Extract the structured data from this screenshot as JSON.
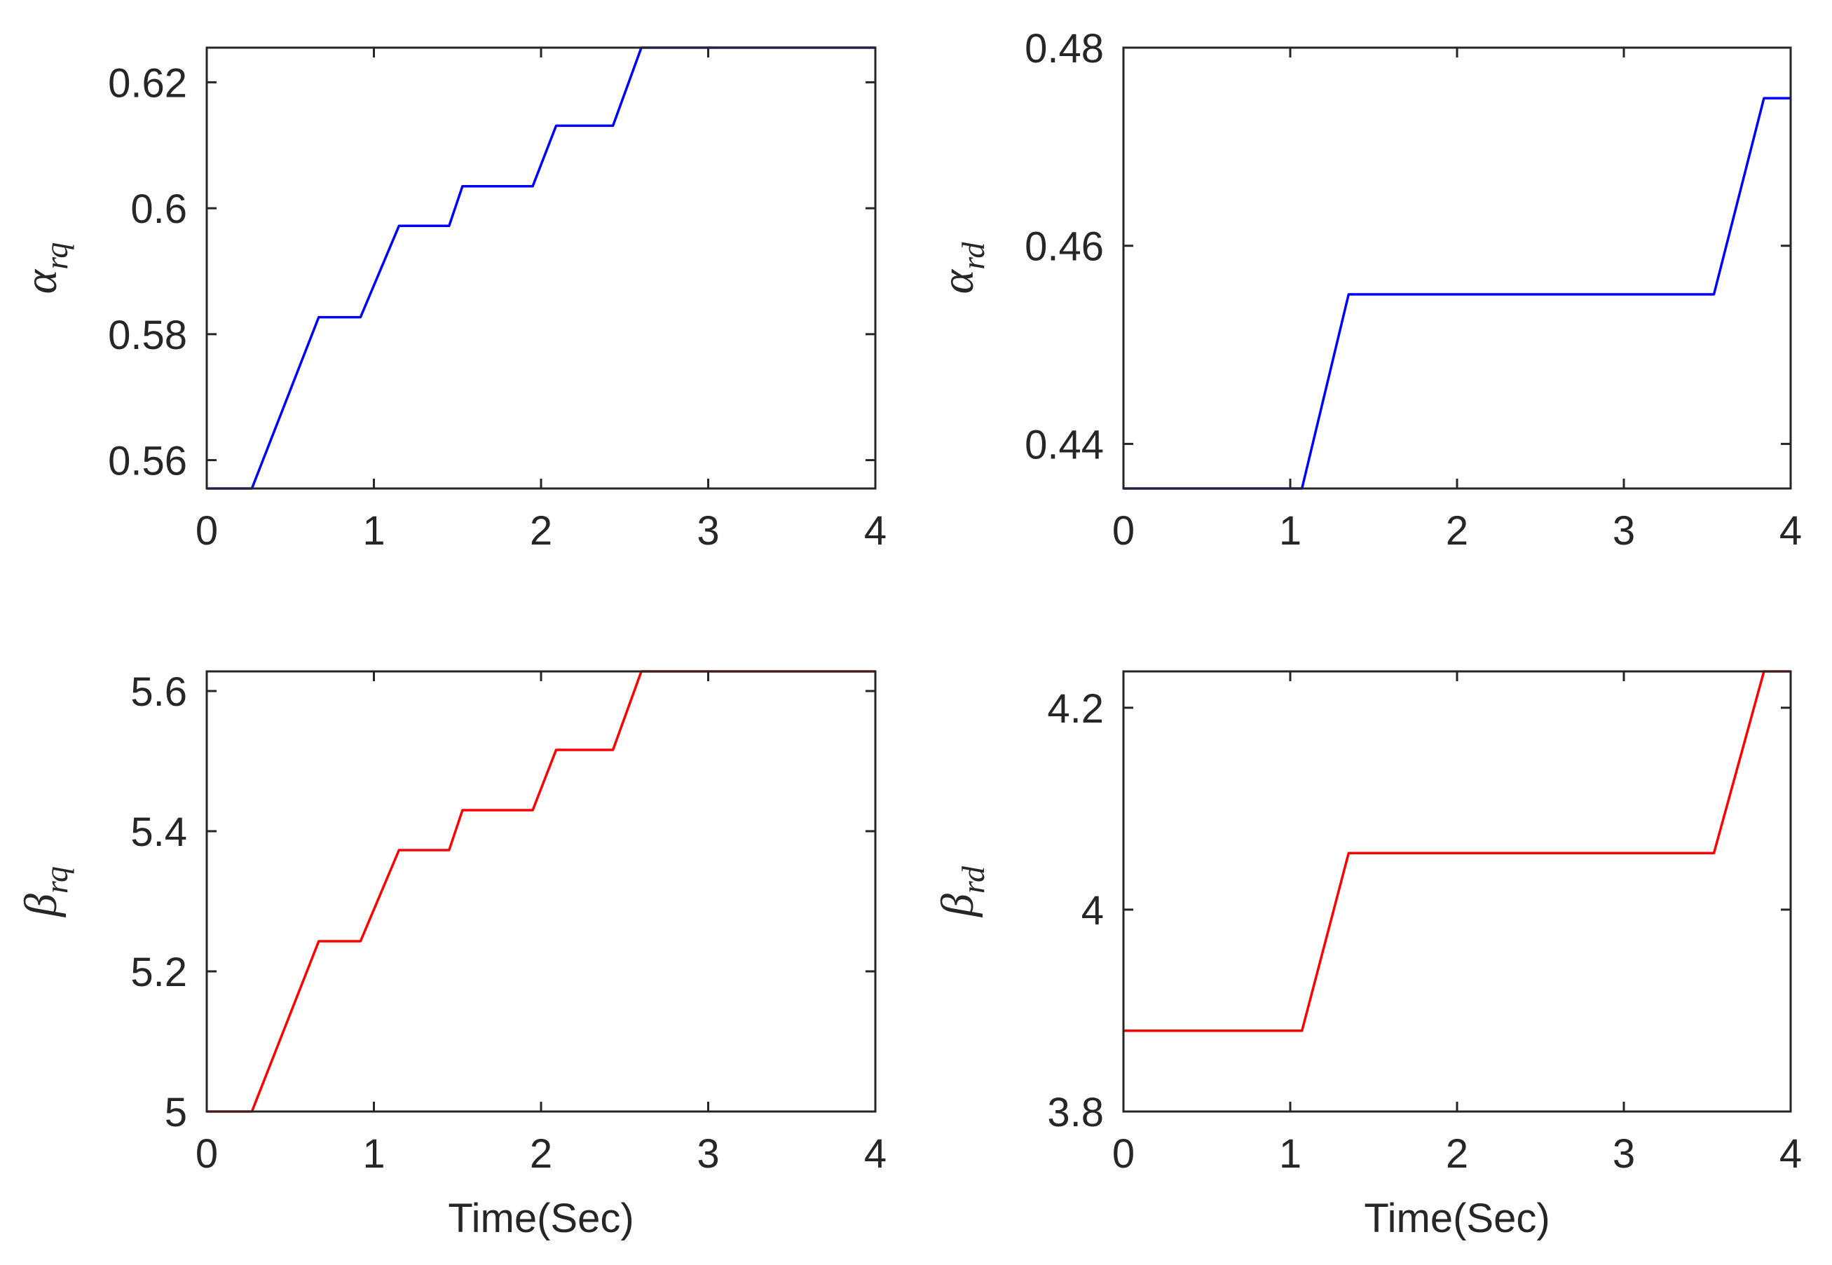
{
  "chart_data": [
    {
      "id": "alpha-rq",
      "type": "line",
      "title": "",
      "xlabel": "",
      "ylabel": {
        "main": "α",
        "sub": "rq"
      },
      "xlim": [
        0,
        4
      ],
      "ylim": [
        0.5555,
        0.6255
      ],
      "xticks": [
        0,
        1,
        2,
        3,
        4
      ],
      "xtick_labels": [
        "0",
        "1",
        "2",
        "3",
        "4"
      ],
      "yticks": [
        0.56,
        0.58,
        0.6,
        0.62
      ],
      "ytick_labels": [
        "0.56",
        "0.58",
        "0.6",
        "0.62"
      ],
      "color": "#0000ff",
      "grid": false,
      "series": [
        {
          "name": "alpha_rq",
          "x": [
            0,
            0.27,
            0.67,
            0.92,
            1.15,
            1.45,
            1.53,
            1.95,
            2.09,
            2.43,
            2.6,
            4
          ],
          "y": [
            0.5555,
            0.5555,
            0.5827,
            0.5827,
            0.5972,
            0.5972,
            0.6035,
            0.6035,
            0.6131,
            0.6131,
            0.6255,
            0.6255
          ]
        }
      ]
    },
    {
      "id": "alpha-rd",
      "type": "line",
      "title": "",
      "xlabel": "",
      "ylabel": {
        "main": "α",
        "sub": "rd"
      },
      "xlim": [
        0,
        4
      ],
      "ylim": [
        0.4355,
        0.48
      ],
      "xticks": [
        0,
        1,
        2,
        3,
        4
      ],
      "xtick_labels": [
        "0",
        "1",
        "2",
        "3",
        "4"
      ],
      "yticks": [
        0.44,
        0.46,
        0.48
      ],
      "ytick_labels": [
        "0.44",
        "0.46",
        "0.48"
      ],
      "color": "#0000ff",
      "grid": false,
      "series": [
        {
          "name": "alpha_rd",
          "x": [
            0,
            1.07,
            1.35,
            3.54,
            3.84,
            4
          ],
          "y": [
            0.4355,
            0.4355,
            0.4551,
            0.4551,
            0.4749,
            0.4749
          ]
        }
      ]
    },
    {
      "id": "beta-rq",
      "type": "line",
      "title": "",
      "xlabel": "Time(Sec)",
      "ylabel": {
        "main": "β",
        "sub": "rq"
      },
      "xlim": [
        0,
        4
      ],
      "ylim": [
        5.0,
        5.628
      ],
      "xticks": [
        0,
        1,
        2,
        3,
        4
      ],
      "xtick_labels": [
        "0",
        "1",
        "2",
        "3",
        "4"
      ],
      "yticks": [
        5.0,
        5.2,
        5.4,
        5.6
      ],
      "ytick_labels": [
        "5",
        "5.2",
        "5.4",
        "5.6"
      ],
      "color": "#ff0000",
      "grid": false,
      "series": [
        {
          "name": "beta_rq",
          "x": [
            0,
            0.27,
            0.67,
            0.92,
            1.15,
            1.45,
            1.53,
            1.95,
            2.09,
            2.43,
            2.6,
            4
          ],
          "y": [
            5.0,
            5.0,
            5.243,
            5.243,
            5.373,
            5.373,
            5.43,
            5.43,
            5.516,
            5.516,
            5.628,
            5.628
          ]
        }
      ]
    },
    {
      "id": "beta-rd",
      "type": "line",
      "title": "",
      "xlabel": "Time(Sec)",
      "ylabel": {
        "main": "β",
        "sub": "rd"
      },
      "xlim": [
        0,
        4
      ],
      "ylim": [
        3.8,
        4.236
      ],
      "xticks": [
        0,
        1,
        2,
        3,
        4
      ],
      "xtick_labels": [
        "0",
        "1",
        "2",
        "3",
        "4"
      ],
      "yticks": [
        3.8,
        4.0,
        4.2
      ],
      "ytick_labels": [
        "3.8",
        "4",
        "4.2"
      ],
      "color": "#ff0000",
      "grid": false,
      "series": [
        {
          "name": "beta_rd",
          "x": [
            0,
            1.07,
            1.35,
            3.54,
            3.84,
            4
          ],
          "y": [
            3.88,
            3.88,
            4.056,
            4.056,
            4.236,
            4.236
          ]
        }
      ]
    }
  ]
}
